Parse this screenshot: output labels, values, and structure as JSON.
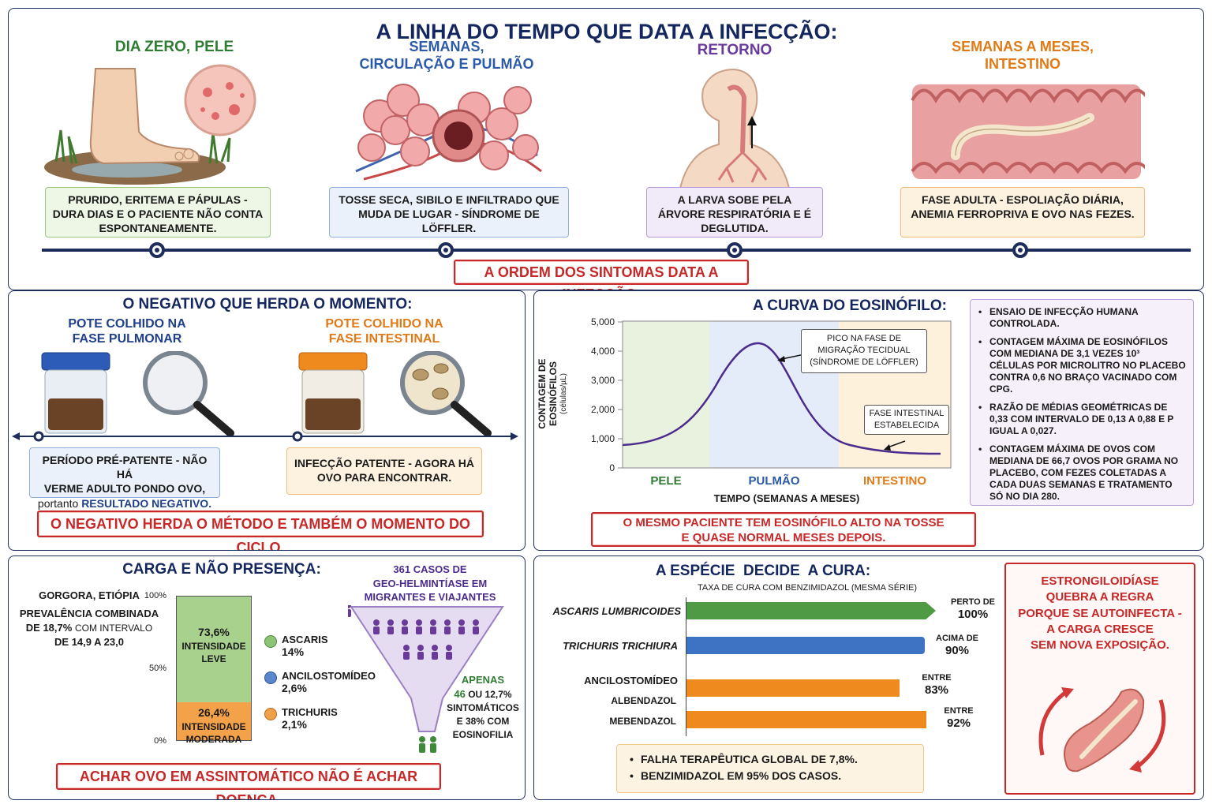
{
  "timeline": {
    "title": "A LINHA DO TEMPO QUE DATA A INFECÇÃO:",
    "stages": [
      {
        "heading": "DIA ZERO, PELE",
        "text": "PRURIDO, ERITEMA E PÁPULAS - DURA DIAS E O PACIENTE NÃO CONTA ESPONTANEAMENTE."
      },
      {
        "heading_l1": "SEMANAS,",
        "heading_l2": "CIRCULAÇÃO E PULMÃO",
        "text": "TOSSE SECA, SIBILO E INFILTRADO QUE MUDA DE LUGAR - SÍNDROME DE LÖFFLER."
      },
      {
        "heading": "RETORNO",
        "text": "A LARVA SOBE PELA ÁRVORE RESPIRATÓRIA E É DEGLUTIDA."
      },
      {
        "heading_l1": "SEMANAS A MESES,",
        "heading_l2": "INTESTINO",
        "text": "FASE ADULTA - ESPOLIAÇÃO DIÁRIA, ANEMIA FERROPRIVA E OVO NAS FEZES."
      }
    ],
    "callout": "A ORDEM DOS SINTOMAS DATA A INFECÇÃO."
  },
  "negative": {
    "title": "O NEGATIVO QUE HERDA O MOMENTO:",
    "pot1_l1": "POTE COLHIDO NA",
    "pot1_l2": "FASE PULMONAR",
    "pot2_l1": "POTE COLHIDO NA",
    "pot2_l2": "FASE INTESTINAL",
    "box1_l1": "PERÍODO PRÉ-PATENTE - NÃO HÁ",
    "box1_l2": "VERME ADULTO PONDO OVO,",
    "box1_l3a": "portanto",
    "box1_l3b": "RESULTADO NEGATIVO.",
    "box2": "INFECÇÃO PATENTE - AGORA HÁ OVO PARA ENCONTRAR.",
    "callout": "O NEGATIVO HERDA O MÉTODO E TAMBÉM O MOMENTO DO CICLO."
  },
  "eosinophil": {
    "title": "A CURVA DO EOSINÓFILO:",
    "ylabel_l1": "CONTAGEM DE",
    "ylabel_l2": "EOSINÓFILOS",
    "ylabel_l3": "(células/µL)",
    "xlabel": "TEMPO (SEMANAS A MESES)",
    "yticks": [
      "5,000",
      "4,000",
      "3,000",
      "2,000",
      "1,000",
      "0"
    ],
    "phases": [
      "PELE",
      "PULMÃO",
      "INTESTINO"
    ],
    "ann1_l1": "PICO NA FASE DE",
    "ann1_l2": "MIGRAÇÃO TECIDUAL",
    "ann1_l3": "(SÍNDROME DE LÖFFLER)",
    "ann2_l1": "FASE INTESTINAL",
    "ann2_l2": "ESTABELECIDA",
    "notes": [
      "ENSAIO DE INFECÇÃO HUMANA CONTROLADA.",
      "CONTAGEM MÁXIMA DE EOSINÓFILOS COM MEDIANA DE 3,1 VEZES 10³ CÉLULAS POR MICROLITRO NO PLACEBO CONTRA 0,6 NO BRAÇO VACINADO COM CPG.",
      "RAZÃO DE MÉDIAS GEOMÉTRICAS DE 0,33 COM INTERVALO DE 0,13 A 0,88 E p IGUAL A 0,027.",
      "CONTAGEM MÁXIMA DE OVOS COM MEDIANA DE 66,7 OVOS POR GRAMA NO PLACEBO, COM FEZES COLETADAS A CADA DUAS SEMANAS E TRATAMENTO SÓ NO DIA 280."
    ],
    "callout_l1": "O MESMO PACIENTE TEM EOSINÓFILO ALTO NA TOSSE",
    "callout_l2": "E QUASE NORMAL MESES DEPOIS."
  },
  "burden": {
    "title": "CARGA E NÃO PRESENÇA:",
    "loc": "GORGORA, ETIÓPIA",
    "prev_l1": "PREVALÊNCIA COMBINADA",
    "prev_l2a": "DE 18,7%",
    "prev_l2b": "COM INTERVALO",
    "prev_l3": "DE 14,9 A 23,0",
    "yticks": [
      "100%",
      "50%",
      "0%"
    ],
    "light_pct": "73,6%",
    "light_l1": "INTENSIDADE",
    "light_l2": "LEVE",
    "mod_pct": "26,4%",
    "mod_l1": "INTENSIDADE",
    "mod_l2": "MODERADA",
    "legend": [
      {
        "name": "ASCARIS",
        "value": "14%"
      },
      {
        "name": "ANCILOSTOMÍDEO",
        "value": "2,6%"
      },
      {
        "name": "TRICHURIS",
        "value": "2,1%"
      }
    ],
    "funnel_l1": "361 CASOS DE",
    "funnel_l2": "GEO-HELMINTÍASE EM",
    "funnel_l3": "MIGRANTES E VIAJANTES",
    "only_l1": "APENAS",
    "only_l2a": "46",
    "only_l2b": "OU 12,7%",
    "only_l3": "SINTOMÁTICOS",
    "only_l4": "E 38% COM",
    "only_l5": "EOSINOFILIA",
    "callout": "ACHAR OVO EM ASSINTOMÁTICO NÃO É ACHAR DOENÇA."
  },
  "species": {
    "title": "A ESPÉCIE  DECIDE  A CURA:",
    "subtitle": "TAXA DE CURA COM BENZIMIDAZOL (MESMA SÉRIE)",
    "bars": [
      {
        "label": "ASCARIS LUMBRICOIDES",
        "value_l1": "PERTO DE",
        "value_l2": "100%",
        "color": "#4f9a45"
      },
      {
        "label": "TRICHURIS TRICHIURA",
        "value_l1": "ACIMA DE",
        "value_l2": "90%",
        "color": "#3e73c4"
      },
      {
        "label": "ALBENDAZOL",
        "value_l1": "ENTRE",
        "value_l2": "83%",
        "color": "#ef8a1f"
      },
      {
        "label": "MEBENDAZOL",
        "value_l1": "ENTRE",
        "value_l2": "92%",
        "color": "#ef8a1f"
      }
    ],
    "group_label": "ANCILOSTOMÍDEO",
    "bullets": [
      "FALHA TERAPÊUTICA GLOBAL DE 7,8%.",
      "BENZIMIDAZOL EM 95% DOS CASOS."
    ],
    "strong_l1": "ESTRONGILOIDÍASE",
    "strong_l2": "QUEBRA A REGRA",
    "strong_l3": "PORQUE SE AUTOINFECTA -",
    "strong_l4": "A CARGA CRESCE",
    "strong_l5": "SEM NOVA EXPOSIÇÃO."
  },
  "colors": {
    "navy": "#14265e",
    "red": "#c62828",
    "green": "#2e7d32",
    "blue": "#2b5aa8",
    "purple": "#6a3a9a",
    "orange": "#e07a16"
  }
}
